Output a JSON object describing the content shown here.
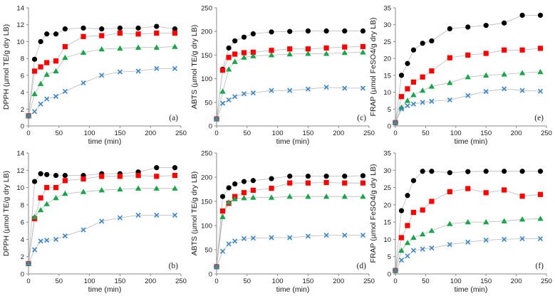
{
  "colors": {
    "black_series": "#000000",
    "red_series": "#ff0000",
    "green_series": "#1aa54a",
    "blue_series": "#3d86c6",
    "connector_line": "#b8b8b8",
    "axis": "#8a8a8a"
  },
  "chart_data": [
    {
      "type": "scatter",
      "panel_label": "(a)",
      "xlabel": "time (min)",
      "ylabel": "DPPH (µmol TE/g dry LB)",
      "xlim": [
        0,
        250
      ],
      "ylim": [
        0,
        14
      ],
      "xticks": [
        0,
        50,
        100,
        150,
        200,
        250
      ],
      "yticks": [
        0,
        2,
        4,
        6,
        8,
        10,
        12,
        14
      ],
      "grid": false,
      "legend": "none",
      "x": [
        0,
        10,
        20,
        30,
        45,
        60,
        90,
        120,
        150,
        180,
        210,
        240
      ],
      "series": [
        {
          "marker": "circle",
          "color": "#000000",
          "values": [
            1.2,
            7.9,
            10.0,
            10.9,
            10.9,
            11.5,
            11.6,
            11.5,
            11.6,
            11.6,
            11.8,
            11.5
          ]
        },
        {
          "marker": "square",
          "color": "#ff0000",
          "values": [
            1.2,
            6.5,
            7.0,
            7.5,
            7.7,
            9.4,
            10.6,
            10.7,
            11.0,
            10.9,
            11.0,
            11.0
          ]
        },
        {
          "marker": "triangle",
          "color": "#1aa54a",
          "values": [
            1.2,
            3.8,
            5.0,
            6.1,
            6.5,
            8.1,
            8.7,
            9.1,
            9.2,
            9.3,
            9.3,
            9.4
          ]
        },
        {
          "marker": "cross",
          "color": "#3d86c6",
          "values": [
            1.2,
            1.7,
            2.6,
            3.2,
            3.5,
            4.1,
            5.1,
            6.0,
            6.4,
            6.5,
            6.8,
            6.8
          ]
        }
      ]
    },
    {
      "type": "scatter",
      "panel_label": "(c)",
      "xlabel": "time (min)",
      "ylabel": "ABTS (µmol TE/g dry LB)",
      "xlim": [
        0,
        250
      ],
      "ylim": [
        0,
        250
      ],
      "xticks": [
        0,
        50,
        100,
        150,
        200,
        250
      ],
      "yticks": [
        0,
        50,
        100,
        150,
        200,
        250
      ],
      "grid": false,
      "legend": "none",
      "x": [
        0,
        10,
        20,
        30,
        45,
        60,
        90,
        120,
        150,
        180,
        210,
        240
      ],
      "series": [
        {
          "marker": "circle",
          "color": "#000000",
          "values": [
            15,
            120,
            165,
            180,
            188,
            195,
            199,
            200,
            201,
            201,
            201,
            201
          ]
        },
        {
          "marker": "square",
          "color": "#ff0000",
          "values": [
            15,
            118,
            145,
            152,
            155,
            156,
            160,
            163,
            163,
            165,
            167,
            168
          ]
        },
        {
          "marker": "triangle",
          "color": "#1aa54a",
          "values": [
            15,
            73,
            120,
            136,
            145,
            148,
            150,
            152,
            153,
            153,
            155,
            156
          ]
        },
        {
          "marker": "cross",
          "color": "#3d86c6",
          "values": [
            15,
            48,
            55,
            62,
            68,
            70,
            75,
            75,
            78,
            82,
            80,
            80
          ]
        }
      ]
    },
    {
      "type": "scatter",
      "panel_label": "(e)",
      "xlabel": "time (min)",
      "ylabel": "FRAP (µmol FeSO4/g dry LB)",
      "xlim": [
        0,
        250
      ],
      "ylim": [
        0,
        35
      ],
      "xticks": [
        0,
        50,
        100,
        150,
        200,
        250
      ],
      "yticks": [
        0,
        5,
        10,
        15,
        20,
        25,
        30,
        35
      ],
      "grid": false,
      "legend": "none",
      "x": [
        0,
        10,
        20,
        30,
        45,
        60,
        90,
        120,
        150,
        180,
        210,
        240
      ],
      "series": [
        {
          "marker": "circle",
          "color": "#000000",
          "values": [
            1.0,
            15.0,
            18.5,
            22.5,
            24.5,
            25.2,
            28.8,
            29.3,
            29.8,
            30.5,
            32.8,
            32.8
          ]
        },
        {
          "marker": "square",
          "color": "#ff0000",
          "values": [
            1.0,
            8.7,
            11.0,
            13.0,
            14.5,
            16.3,
            20.2,
            21.0,
            21.5,
            22.5,
            22.5,
            23.0
          ]
        },
        {
          "marker": "triangle",
          "color": "#1aa54a",
          "values": [
            1.0,
            5.5,
            7.5,
            9.2,
            10.5,
            11.7,
            12.8,
            14.5,
            15.0,
            15.3,
            15.7,
            16.0
          ]
        },
        {
          "marker": "cross",
          "color": "#3d86c6",
          "values": [
            1.0,
            5.0,
            6.0,
            6.5,
            7.0,
            7.3,
            7.7,
            9.0,
            10.2,
            11.0,
            10.5,
            10.3
          ]
        }
      ]
    },
    {
      "type": "scatter",
      "panel_label": "(b)",
      "xlabel": "time (min)",
      "ylabel": "DPPH (µmol TE/g dry LB)",
      "xlim": [
        0,
        250
      ],
      "ylim": [
        0,
        14
      ],
      "xticks": [
        0,
        50,
        100,
        150,
        200,
        250
      ],
      "yticks": [
        0,
        2,
        4,
        6,
        8,
        10,
        12,
        14
      ],
      "grid": false,
      "legend": "none",
      "x": [
        0,
        10,
        20,
        30,
        45,
        60,
        90,
        120,
        150,
        180,
        210,
        240
      ],
      "series": [
        {
          "marker": "circle",
          "color": "#000000",
          "values": [
            1.2,
            10.7,
            11.6,
            11.5,
            11.4,
            11.4,
            11.4,
            11.6,
            11.6,
            11.8,
            12.3,
            12.3
          ]
        },
        {
          "marker": "square",
          "color": "#ff0000",
          "values": [
            1.2,
            6.4,
            8.8,
            10.0,
            10.0,
            10.8,
            11.0,
            11.3,
            11.3,
            11.4,
            11.3,
            11.4
          ]
        },
        {
          "marker": "triangle",
          "color": "#1aa54a",
          "values": [
            1.2,
            6.6,
            7.4,
            8.1,
            8.8,
            9.3,
            9.5,
            9.7,
            9.8,
            9.9,
            9.9,
            9.9
          ]
        },
        {
          "marker": "cross",
          "color": "#3d86c6",
          "values": [
            1.2,
            2.8,
            3.8,
            3.9,
            4.0,
            4.4,
            5.1,
            6.1,
            6.5,
            6.8,
            6.8,
            6.8
          ]
        }
      ]
    },
    {
      "type": "scatter",
      "panel_label": "(d)",
      "xlabel": "time (min)",
      "ylabel": "ABTS (µmol TE/g dry LB)",
      "xlim": [
        0,
        250
      ],
      "ylim": [
        0,
        250
      ],
      "xticks": [
        0,
        50,
        100,
        150,
        200,
        250
      ],
      "yticks": [
        0,
        50,
        100,
        150,
        200,
        250
      ],
      "grid": false,
      "legend": "none",
      "x": [
        0,
        10,
        20,
        30,
        45,
        60,
        90,
        120,
        150,
        180,
        210,
        240
      ],
      "series": [
        {
          "marker": "circle",
          "color": "#000000",
          "values": [
            15,
            160,
            178,
            186,
            191,
            193,
            197,
            202,
            202,
            202,
            202,
            203
          ]
        },
        {
          "marker": "square",
          "color": "#ff0000",
          "values": [
            15,
            130,
            146,
            160,
            168,
            173,
            177,
            188,
            188,
            189,
            188,
            188
          ]
        },
        {
          "marker": "triangle",
          "color": "#1aa54a",
          "values": [
            15,
            118,
            148,
            155,
            157,
            158,
            158,
            160,
            160,
            160,
            160,
            160
          ]
        },
        {
          "marker": "cross",
          "color": "#3d86c6",
          "values": [
            15,
            47,
            62,
            68,
            73,
            74,
            75,
            75,
            78,
            80,
            80,
            80
          ]
        }
      ]
    },
    {
      "type": "scatter",
      "panel_label": "(f)",
      "xlabel": "time (min)",
      "ylabel": "FRAP (µmol FeSO4/g dry LB)",
      "xlim": [
        0,
        250
      ],
      "ylim": [
        0,
        35
      ],
      "xticks": [
        0,
        50,
        100,
        150,
        200,
        250
      ],
      "yticks": [
        0,
        5,
        10,
        15,
        20,
        25,
        30,
        35
      ],
      "grid": false,
      "legend": "none",
      "x": [
        0,
        10,
        20,
        30,
        45,
        60,
        90,
        120,
        150,
        180,
        210,
        240
      ],
      "series": [
        {
          "marker": "circle",
          "color": "#000000",
          "values": [
            1.0,
            18.3,
            22.7,
            27.0,
            29.7,
            29.7,
            29.3,
            29.6,
            29.7,
            29.7,
            29.7,
            29.7
          ]
        },
        {
          "marker": "square",
          "color": "#ff0000",
          "values": [
            1.0,
            10.5,
            14.0,
            17.8,
            18.5,
            21.0,
            23.8,
            24.7,
            23.5,
            24.3,
            22.5,
            23.0
          ]
        },
        {
          "marker": "triangle",
          "color": "#1aa54a",
          "values": [
            1.0,
            6.8,
            9.0,
            10.5,
            11.5,
            12.5,
            14.5,
            15.0,
            15.0,
            15.3,
            15.8,
            16.0
          ]
        },
        {
          "marker": "cross",
          "color": "#3d86c6",
          "values": [
            1.0,
            4.0,
            5.2,
            6.8,
            7.2,
            7.5,
            8.5,
            9.2,
            9.8,
            10.0,
            10.2,
            10.2
          ]
        }
      ]
    }
  ]
}
